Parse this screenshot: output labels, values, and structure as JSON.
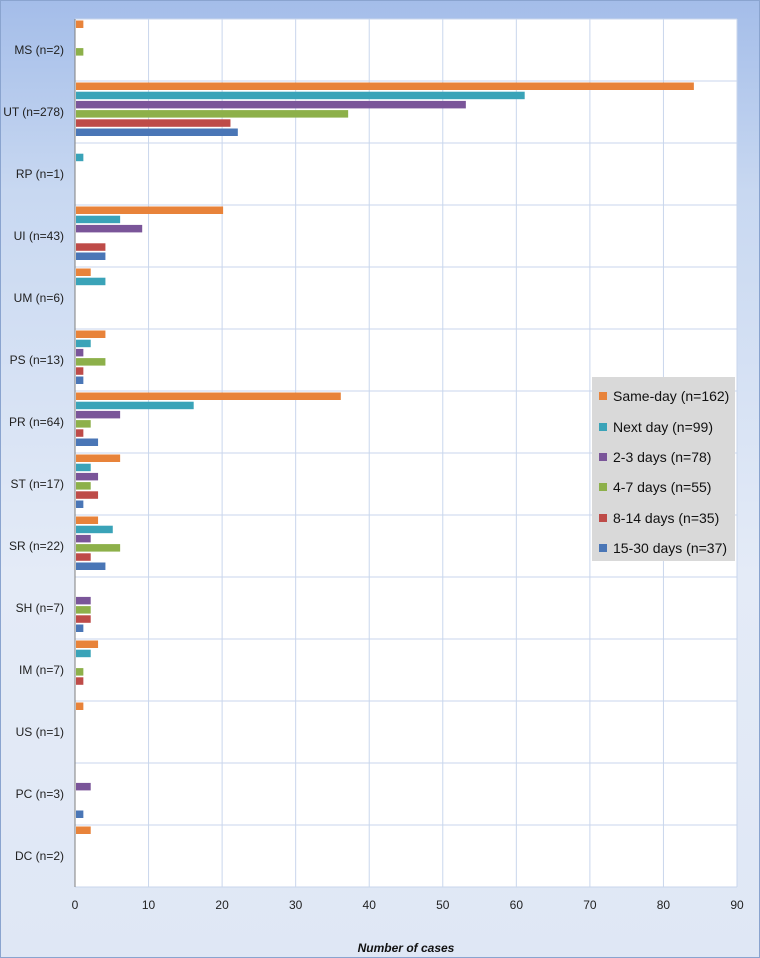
{
  "chart_data": {
    "type": "bar",
    "orientation": "horizontal",
    "xlabel": "Number of cases",
    "xlim": [
      0,
      90
    ],
    "xticks": [
      0,
      10,
      20,
      30,
      40,
      50,
      60,
      70,
      80,
      90
    ],
    "grid": true,
    "legend_position": "right",
    "categories": [
      "MS (n=2)",
      "UT (n=278)",
      "RP (n=1)",
      "UI (n=43)",
      "UM (n=6)",
      "PS (n=13)",
      "PR (n=64)",
      "ST (n=17)",
      "SR (n=22)",
      "SH (n=7)",
      "IM (n=7)",
      "US (n=1)",
      "PC (n=3)",
      "DC (n=2)"
    ],
    "series": [
      {
        "name": "Same-day (n=162)",
        "color": "#e8833a",
        "values": [
          1,
          84,
          0,
          20,
          2,
          4,
          36,
          6,
          3,
          0,
          3,
          1,
          0,
          2
        ]
      },
      {
        "name": "Next day (n=99)",
        "color": "#3aa3b8",
        "values": [
          0,
          61,
          1,
          6,
          4,
          2,
          16,
          2,
          5,
          0,
          2,
          0,
          0,
          0
        ]
      },
      {
        "name": "2-3 days (n=78)",
        "color": "#7a5599",
        "values": [
          0,
          53,
          0,
          9,
          0,
          1,
          6,
          3,
          2,
          2,
          0,
          0,
          2,
          0
        ]
      },
      {
        "name": "4-7 days (n=55)",
        "color": "#8db04a",
        "values": [
          1,
          37,
          0,
          0,
          0,
          4,
          2,
          2,
          6,
          2,
          1,
          0,
          0,
          0
        ]
      },
      {
        "name": "8-14 days (n=35)",
        "color": "#be4b48",
        "values": [
          0,
          21,
          0,
          4,
          0,
          1,
          1,
          3,
          2,
          2,
          1,
          0,
          0,
          0
        ]
      },
      {
        "name": "15-30 days (n=37)",
        "color": "#4a76b6",
        "values": [
          0,
          22,
          0,
          4,
          0,
          1,
          3,
          1,
          4,
          1,
          0,
          0,
          1,
          0
        ]
      }
    ]
  }
}
